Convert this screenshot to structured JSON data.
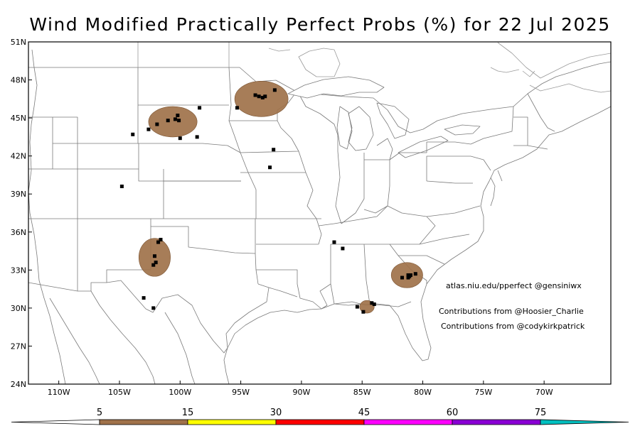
{
  "title": "Wind Modified Practically Perfect Probs (%) for 22 Jul 2025",
  "map": {
    "lat_range": [
      24,
      51
    ],
    "lon_range": [
      -112.5,
      -64.5
    ],
    "lat_ticks": [
      {
        "value": 51,
        "label": "51N"
      },
      {
        "value": 48,
        "label": "48N"
      },
      {
        "value": 45,
        "label": "45N"
      },
      {
        "value": 42,
        "label": "42N"
      },
      {
        "value": 39,
        "label": "39N"
      },
      {
        "value": 36,
        "label": "36N"
      },
      {
        "value": 33,
        "label": "33N"
      },
      {
        "value": 30,
        "label": "30N"
      },
      {
        "value": 27,
        "label": "27N"
      },
      {
        "value": 24,
        "label": "24N"
      }
    ],
    "lon_ticks": [
      {
        "value": -110,
        "label": "110W"
      },
      {
        "value": -105,
        "label": "105W"
      },
      {
        "value": -100,
        "label": "100W"
      },
      {
        "value": -95,
        "label": "95W"
      },
      {
        "value": -90,
        "label": "90W"
      },
      {
        "value": -85,
        "label": "85W"
      },
      {
        "value": -80,
        "label": "80W"
      },
      {
        "value": -75,
        "label": "75W"
      },
      {
        "value": -70,
        "label": "70W"
      }
    ],
    "probability_areas": [
      {
        "region": "South Dakota / North Dakota",
        "level": 5,
        "color": "#a0724a",
        "center": [
          -100.6,
          44.7
        ],
        "radii": [
          2.0,
          1.2
        ]
      },
      {
        "region": "Minnesota",
        "level": 5,
        "color": "#a0724a",
        "center": [
          -93.3,
          46.5
        ],
        "radii": [
          2.2,
          1.4
        ]
      },
      {
        "region": "Texas Panhandle",
        "level": 5,
        "color": "#a0724a",
        "center": [
          -102.1,
          34.0
        ],
        "radii": [
          1.3,
          1.5
        ]
      },
      {
        "region": "South Carolina",
        "level": 5,
        "color": "#a0724a",
        "center": [
          -81.3,
          32.6
        ],
        "radii": [
          1.3,
          1.0
        ]
      },
      {
        "region": "Florida Big Bend",
        "level": 5,
        "color": "#a0724a",
        "center": [
          -84.6,
          30.1
        ],
        "radii": [
          0.6,
          0.5
        ]
      }
    ],
    "wind_reports": [
      [
        -100.2,
        45.2
      ],
      [
        -100.4,
        44.9
      ],
      [
        -100.1,
        44.8
      ],
      [
        -101.0,
        44.8
      ],
      [
        -101.9,
        44.5
      ],
      [
        -102.6,
        44.1
      ],
      [
        -103.9,
        43.7
      ],
      [
        -100.0,
        43.4
      ],
      [
        -98.6,
        43.5
      ],
      [
        -98.4,
        45.8
      ],
      [
        -92.2,
        47.2
      ],
      [
        -93.5,
        46.7
      ],
      [
        -93.2,
        46.6
      ],
      [
        -93.0,
        46.7
      ],
      [
        -93.8,
        46.8
      ],
      [
        -95.3,
        45.8
      ],
      [
        -92.3,
        42.5
      ],
      [
        -92.6,
        41.1
      ],
      [
        -104.8,
        39.6
      ],
      [
        -101.6,
        35.4
      ],
      [
        -101.8,
        35.2
      ],
      [
        -102.1,
        34.1
      ],
      [
        -102.0,
        33.6
      ],
      [
        -102.2,
        33.4
      ],
      [
        -103.0,
        30.8
      ],
      [
        -102.2,
        30.0
      ],
      [
        -81.7,
        32.4
      ],
      [
        -81.2,
        32.4
      ],
      [
        -81.0,
        32.6
      ],
      [
        -80.6,
        32.7
      ],
      [
        -81.2,
        32.6
      ],
      [
        -81.1,
        32.5
      ],
      [
        -84.9,
        29.7
      ],
      [
        -84.2,
        30.4
      ],
      [
        -84.0,
        30.3
      ],
      [
        -85.4,
        30.1
      ],
      [
        -87.3,
        35.2
      ],
      [
        -86.6,
        34.7
      ]
    ]
  },
  "credits": [
    "atlas.niu.edu/pperfect @gensiniwx",
    "Contributions from @Hoosier_Charlie",
    "Contributions from @codykirkpatrick"
  ],
  "colorbar": {
    "labels": [
      "5",
      "15",
      "30",
      "45",
      "60",
      "75"
    ],
    "segments": [
      {
        "from": 5,
        "to": 15,
        "color": "#a0724a"
      },
      {
        "from": 15,
        "to": 30,
        "color": "#ffff00"
      },
      {
        "from": 30,
        "to": 45,
        "color": "#ff0000"
      },
      {
        "from": 45,
        "to": 60,
        "color": "#ff00ff"
      },
      {
        "from": 60,
        "to": 75,
        "color": "#8a00d4"
      },
      {
        "from": 75,
        "to": 100,
        "color": "#00c0c0"
      }
    ]
  }
}
